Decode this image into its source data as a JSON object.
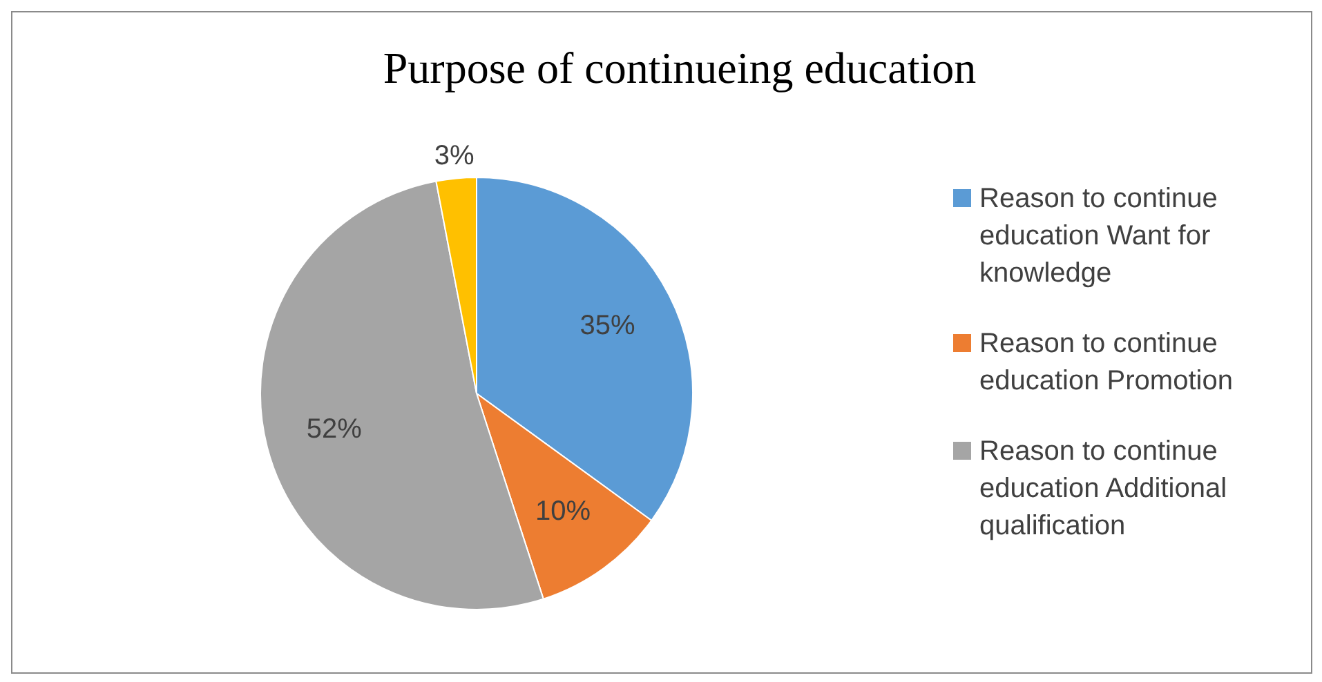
{
  "chart_data": {
    "type": "pie",
    "title": "Purpose of continueing education",
    "categories": [
      "Reason to continue education Want for knowledge",
      "Reason to continue education Promotion",
      "Reason to continue education Additional qualification",
      null
    ],
    "values": [
      35,
      10,
      52,
      3
    ],
    "colors": [
      "#5b9bd5",
      "#ed7d31",
      "#a5a5a5",
      "#ffc000"
    ],
    "value_labels": [
      "35%",
      "10%",
      "52%",
      "3%"
    ],
    "legend": "right"
  }
}
